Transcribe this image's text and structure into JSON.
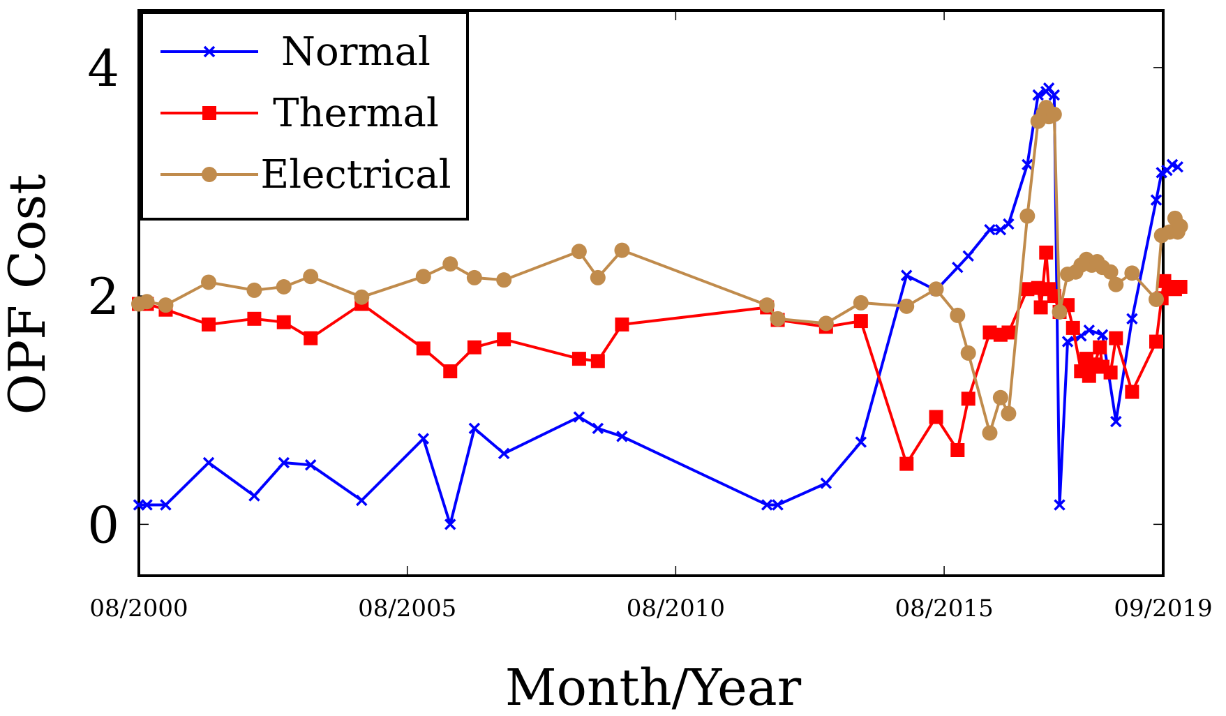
{
  "chart_data": {
    "type": "line",
    "title": "",
    "xlabel": "Month/Year",
    "ylabel": "OPF Cost",
    "x_unit": "years since Aug 2000",
    "xlim": [
      0,
      19.08
    ],
    "ylim": [
      -0.45,
      4.5
    ],
    "x_ticks": [
      {
        "x": 0,
        "label": "08/2000"
      },
      {
        "x": 5,
        "label": "08/2005"
      },
      {
        "x": 10,
        "label": "08/2010"
      },
      {
        "x": 15,
        "label": "08/2015"
      },
      {
        "x": 19.08,
        "label": "09/2019"
      }
    ],
    "y_ticks": [
      {
        "y": 0,
        "label": "0"
      },
      {
        "y": 2,
        "label": "2"
      },
      {
        "y": 4,
        "label": "4"
      }
    ],
    "legend_position": "top-left",
    "series": [
      {
        "name": "Normal",
        "color": "#0000ff",
        "marker": "x",
        "points": [
          [
            0,
            0.17
          ],
          [
            0.15,
            0.17
          ],
          [
            0.5,
            0.17
          ],
          [
            1.3,
            0.54
          ],
          [
            2.15,
            0.25
          ],
          [
            2.7,
            0.54
          ],
          [
            3.2,
            0.52
          ],
          [
            4.15,
            0.21
          ],
          [
            5.3,
            0.75
          ],
          [
            5.8,
            0.0
          ],
          [
            6.25,
            0.84
          ],
          [
            6.8,
            0.62
          ],
          [
            8.2,
            0.94
          ],
          [
            8.55,
            0.84
          ],
          [
            9.0,
            0.77
          ],
          [
            11.7,
            0.17
          ],
          [
            11.9,
            0.17
          ],
          [
            12.8,
            0.36
          ],
          [
            13.45,
            0.72
          ],
          [
            14.3,
            2.18
          ],
          [
            14.85,
            2.05
          ],
          [
            15.25,
            2.25
          ],
          [
            15.45,
            2.35
          ],
          [
            15.85,
            2.58
          ],
          [
            16.05,
            2.58
          ],
          [
            16.2,
            2.63
          ],
          [
            16.55,
            3.15
          ],
          [
            16.75,
            3.76
          ],
          [
            16.9,
            3.79
          ],
          [
            16.95,
            3.82
          ],
          [
            17.05,
            3.76
          ],
          [
            17.15,
            0.17
          ],
          [
            17.3,
            1.6
          ],
          [
            17.55,
            1.65
          ],
          [
            17.7,
            1.7
          ],
          [
            17.95,
            1.66
          ],
          [
            18.2,
            0.9
          ],
          [
            18.5,
            1.8
          ],
          [
            18.95,
            2.84
          ],
          [
            19.05,
            3.08
          ],
          [
            19.15,
            3.1
          ],
          [
            19.25,
            3.15
          ],
          [
            19.35,
            3.13
          ]
        ]
      },
      {
        "name": "Thermal",
        "color": "#ff0000",
        "marker": "square",
        "points": [
          [
            0,
            1.93
          ],
          [
            0.15,
            1.93
          ],
          [
            0.5,
            1.88
          ],
          [
            1.3,
            1.75
          ],
          [
            2.15,
            1.8
          ],
          [
            2.7,
            1.77
          ],
          [
            3.2,
            1.63
          ],
          [
            4.15,
            1.93
          ],
          [
            5.3,
            1.54
          ],
          [
            5.8,
            1.34
          ],
          [
            6.25,
            1.55
          ],
          [
            6.8,
            1.62
          ],
          [
            8.2,
            1.45
          ],
          [
            8.55,
            1.43
          ],
          [
            9.0,
            1.75
          ],
          [
            11.7,
            1.9
          ],
          [
            11.9,
            1.79
          ],
          [
            12.8,
            1.73
          ],
          [
            13.45,
            1.78
          ],
          [
            14.3,
            0.53
          ],
          [
            14.85,
            0.94
          ],
          [
            15.25,
            0.65
          ],
          [
            15.45,
            1.1
          ],
          [
            15.85,
            1.68
          ],
          [
            16.05,
            1.66
          ],
          [
            16.2,
            1.68
          ],
          [
            16.55,
            2.06
          ],
          [
            16.75,
            2.07
          ],
          [
            16.8,
            1.9
          ],
          [
            16.9,
            2.38
          ],
          [
            16.95,
            2.06
          ],
          [
            17.05,
            2.0
          ],
          [
            17.15,
            1.86
          ],
          [
            17.3,
            1.92
          ],
          [
            17.4,
            1.72
          ],
          [
            17.55,
            1.34
          ],
          [
            17.65,
            1.45
          ],
          [
            17.7,
            1.3
          ],
          [
            17.8,
            1.4
          ],
          [
            17.9,
            1.55
          ],
          [
            17.95,
            1.38
          ],
          [
            18.1,
            1.33
          ],
          [
            18.2,
            1.63
          ],
          [
            18.5,
            1.16
          ],
          [
            18.95,
            1.6
          ],
          [
            19.05,
            1.98
          ],
          [
            19.1,
            2.13
          ],
          [
            19.2,
            2.08
          ],
          [
            19.3,
            2.06
          ],
          [
            19.4,
            2.08
          ]
        ]
      },
      {
        "name": "Electrical",
        "color": "#c08b4c",
        "marker": "circle",
        "points": [
          [
            0,
            1.93
          ],
          [
            0.15,
            1.95
          ],
          [
            0.5,
            1.92
          ],
          [
            1.3,
            2.12
          ],
          [
            2.15,
            2.05
          ],
          [
            2.7,
            2.08
          ],
          [
            3.2,
            2.17
          ],
          [
            4.15,
            1.99
          ],
          [
            5.3,
            2.17
          ],
          [
            5.8,
            2.28
          ],
          [
            6.25,
            2.16
          ],
          [
            6.8,
            2.14
          ],
          [
            8.2,
            2.39
          ],
          [
            8.55,
            2.16
          ],
          [
            9.0,
            2.4
          ],
          [
            11.7,
            1.92
          ],
          [
            11.9,
            1.8
          ],
          [
            12.8,
            1.76
          ],
          [
            13.45,
            1.94
          ],
          [
            14.3,
            1.91
          ],
          [
            14.85,
            2.06
          ],
          [
            15.25,
            1.83
          ],
          [
            15.45,
            1.5
          ],
          [
            15.85,
            0.8
          ],
          [
            16.05,
            1.11
          ],
          [
            16.2,
            0.97
          ],
          [
            16.55,
            2.7
          ],
          [
            16.75,
            3.53
          ],
          [
            16.85,
            3.6
          ],
          [
            16.9,
            3.65
          ],
          [
            16.95,
            3.57
          ],
          [
            17.05,
            3.59
          ],
          [
            17.15,
            1.86
          ],
          [
            17.3,
            2.19
          ],
          [
            17.45,
            2.21
          ],
          [
            17.55,
            2.27
          ],
          [
            17.65,
            2.32
          ],
          [
            17.75,
            2.27
          ],
          [
            17.85,
            2.3
          ],
          [
            17.95,
            2.25
          ],
          [
            18.1,
            2.21
          ],
          [
            18.2,
            2.1
          ],
          [
            18.5,
            2.2
          ],
          [
            18.95,
            1.97
          ],
          [
            19.05,
            2.53
          ],
          [
            19.2,
            2.56
          ],
          [
            19.3,
            2.68
          ],
          [
            19.35,
            2.56
          ],
          [
            19.4,
            2.61
          ]
        ]
      }
    ]
  }
}
